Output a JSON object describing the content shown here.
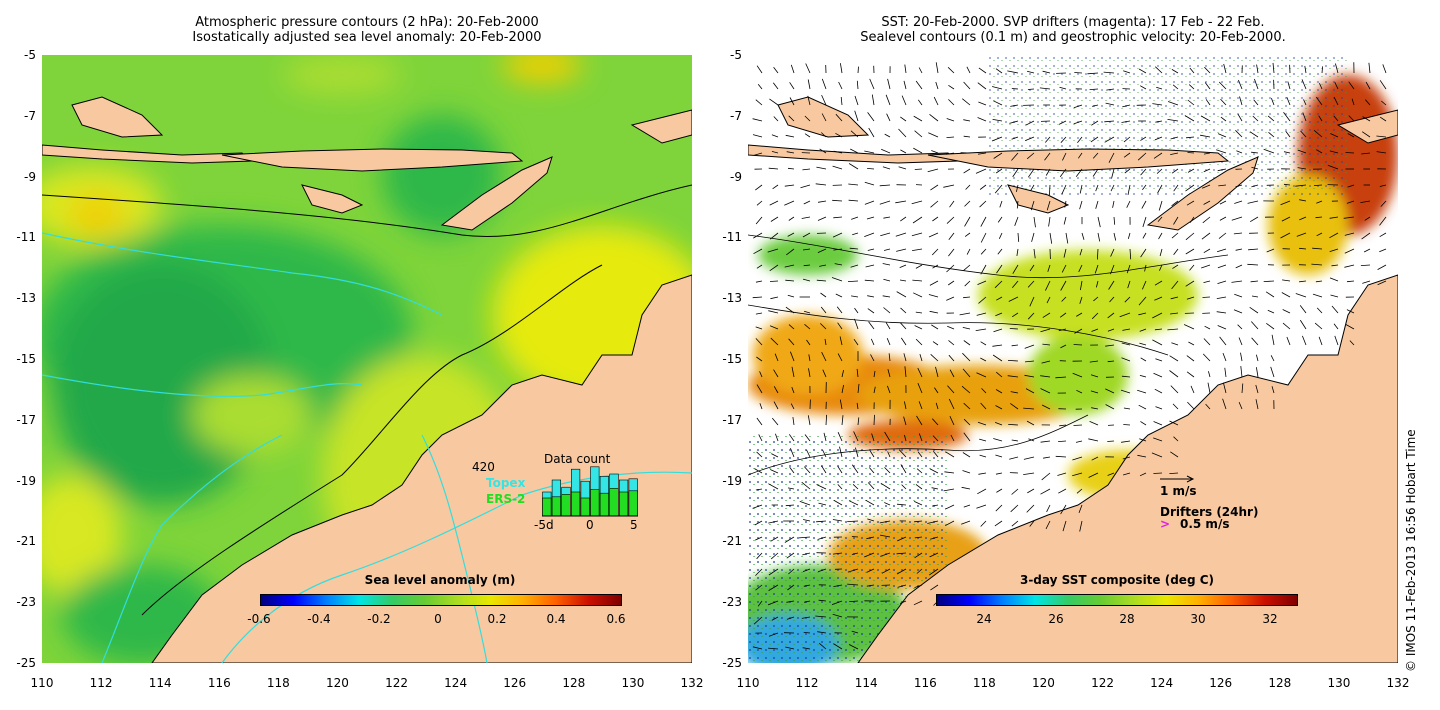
{
  "left_panel": {
    "title_line1": "Atmospheric pressure contours (2 hPa): 20-Feb-2000",
    "title_line2": "Isostatically adjusted sea level anomaly: 20-Feb-2000",
    "colorbar": {
      "label": "Sea level anomaly (m)",
      "ticks": [
        "-0.6",
        "-0.4",
        "-0.2",
        "0",
        "0.2",
        "0.4",
        "0.6"
      ],
      "range": [
        -0.6,
        0.6
      ]
    },
    "data_count": {
      "title": "Data count",
      "total": "420",
      "series": [
        "Topex",
        "ERS-2"
      ],
      "series_colors": [
        "#33e5e5",
        "#22dd22"
      ],
      "x_ticks": [
        "-5d",
        "0",
        "5"
      ],
      "topex_bars": [
        40,
        60,
        48,
        78,
        58,
        82,
        66,
        70,
        60,
        62
      ],
      "ers_bars": [
        30,
        32,
        36,
        40,
        30,
        44,
        38,
        46,
        40,
        42
      ]
    }
  },
  "right_panel": {
    "title_line1": "SST: 20-Feb-2000. SVP drifters (magenta): 17 Feb - 22 Feb.",
    "title_line2": "Sealevel contours (0.1 m) and geostrophic velocity: 20-Feb-2000.",
    "colorbar": {
      "label": "3-day SST composite (deg C)",
      "ticks": [
        "24",
        "26",
        "28",
        "30",
        "32"
      ],
      "range": [
        22.7,
        32.8
      ]
    },
    "velocity_scale": "1 m/s",
    "drifters_label": "Drifters (24hr)",
    "drifter_scale": "0.5 m/s"
  },
  "axes": {
    "lat_ticks": [
      "-5",
      "-7",
      "-9",
      "-11",
      "-13",
      "-15",
      "-17",
      "-19",
      "-21",
      "-23",
      "-25"
    ],
    "lon_ticks": [
      "110",
      "112",
      "114",
      "116",
      "118",
      "120",
      "122",
      "124",
      "126",
      "128",
      "130",
      "132"
    ],
    "lat_range": [
      -25,
      -5
    ],
    "lon_range": [
      110,
      132
    ]
  },
  "credit": "© IMOS 11-Feb-2013 16:56 Hobart Time",
  "colors": {
    "land": "#f8c9a0",
    "sla_green": "#66cc33",
    "sla_yellow": "#e8e800",
    "sst_white": "#ffffff",
    "current_arrow": "#000000",
    "contour_cyan": "#33dddd"
  }
}
